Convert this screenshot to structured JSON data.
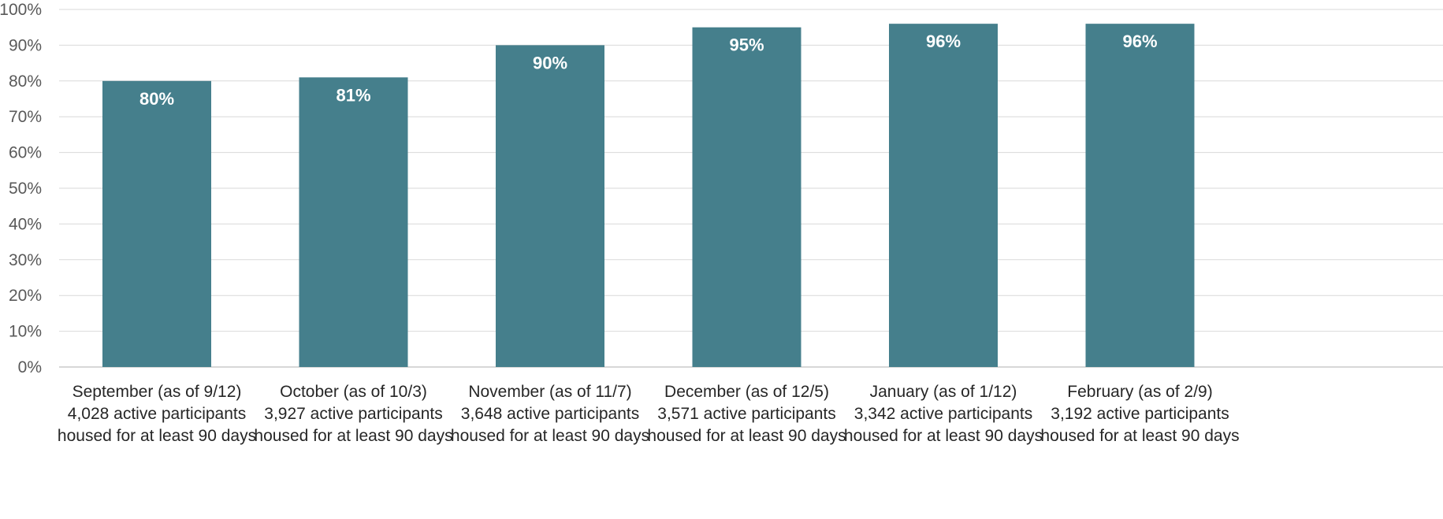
{
  "chart_data": {
    "type": "bar",
    "categories": [
      [
        "September (as of 9/12)",
        "4,028 active participants",
        "housed for at least 90 days"
      ],
      [
        "October (as of 10/3)",
        "3,927 active participants",
        "housed for at least 90 days"
      ],
      [
        "November (as of 11/7)",
        "3,648 active participants",
        "housed for at least 90 days"
      ],
      [
        "December (as of 12/5)",
        "3,571 active participants",
        "housed for at least 90 days"
      ],
      [
        "January (as of 1/12)",
        "3,342 active participants",
        "housed for at least 90 days"
      ],
      [
        "February (as of 2/9)",
        "3,192 active participants",
        "housed for at least 90 days"
      ]
    ],
    "values": [
      80,
      81,
      90,
      95,
      96,
      96
    ],
    "data_labels": [
      "80%",
      "81%",
      "90%",
      "95%",
      "96%",
      "96%"
    ],
    "y_ticks": [
      "0%",
      "10%",
      "20%",
      "30%",
      "40%",
      "50%",
      "60%",
      "70%",
      "80%",
      "90%",
      "100%"
    ],
    "ylim": [
      0,
      100
    ],
    "grid": true,
    "colors": {
      "bar": "#457f8c"
    }
  }
}
